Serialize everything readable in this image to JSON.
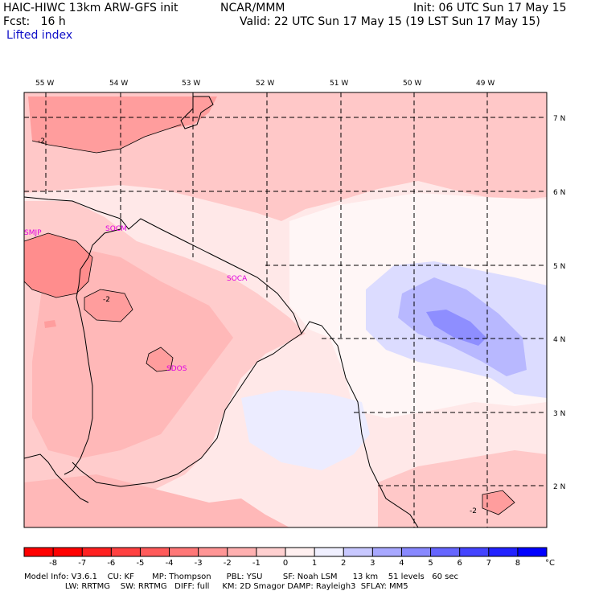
{
  "header": {
    "model_title": "HAIC-HIWC 13km ARW-GFS init",
    "org": "NCAR/MMM",
    "init": "Init: 06 UTC Sun 17 May 15",
    "fcst": "Fcst:   16 h",
    "valid": "Valid: 22 UTC Sun 17 May 15 (19 LST Sun 17 May 15)",
    "field": "Lifted index"
  },
  "map": {
    "longitudes": [
      "55 W",
      "54 W",
      "53 W",
      "52 W",
      "51 W",
      "50 W",
      "49 W"
    ],
    "latitudes": [
      "7 N",
      "6 N",
      "5 N",
      "4 N",
      "3 N",
      "2 N"
    ],
    "stations": [
      "SMJP",
      "SOCM",
      "SOCA",
      "SDOS"
    ],
    "contour_labels": [
      "-2",
      "-2",
      "-2"
    ]
  },
  "colorbar": {
    "ticks": [
      "-8",
      "-7",
      "-6",
      "-5",
      "-4",
      "-3",
      "-2",
      "-1",
      "0",
      "1",
      "2",
      "3",
      "4",
      "5",
      "6",
      "7",
      "8"
    ],
    "unit": "°C",
    "colors": [
      "#ff0000",
      "#ff2020",
      "#ff4040",
      "#ff5a5a",
      "#ff7777",
      "#ff9595",
      "#ffb0b0",
      "#ffd0d0",
      "#fff0f0",
      "#f0f0ff",
      "#c8c8ff",
      "#a8a8ff",
      "#8888ff",
      "#6666ff",
      "#4444ff",
      "#2222ff",
      "#0000ff"
    ]
  },
  "footer": {
    "line1": "Model Info: V3.6.1    CU: KF       MP: Thompson      PBL: YSU        SF: Noah LSM      13 km    51 levels   60 sec",
    "line2": "                LW: RRTMG    SW: RRTMG   DIFF: full     KM: 2D Smagor DAMP: Rayleigh3  SFLAY: MM5"
  }
}
